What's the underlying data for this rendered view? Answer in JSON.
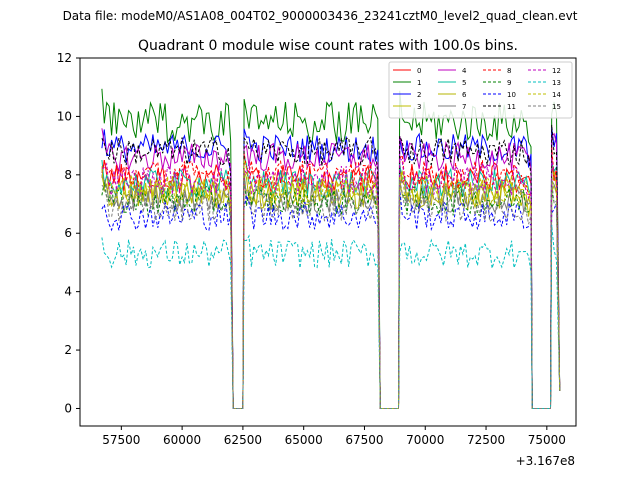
{
  "header": {
    "file_label": "Data file: modeM0/AS1A08_004T02_9000003436_23241cztM0_level2_quad_clean.evt"
  },
  "chart_data": {
    "type": "line",
    "title": "Quadrant 0 module wise count rates with 100.0s bins.",
    "xlabel": "",
    "ylabel": "",
    "x_offset_label": "+3.167e8",
    "xlim": [
      55800,
      76200
    ],
    "ylim": [
      -0.6,
      12
    ],
    "xticks": [
      57500,
      60000,
      62500,
      65000,
      67500,
      70000,
      72500,
      75000
    ],
    "xtick_labels": [
      "57500",
      "60000",
      "62500",
      "65000",
      "67500",
      "70000",
      "72500",
      "75000"
    ],
    "yticks": [
      0,
      2,
      4,
      6,
      8,
      10,
      12
    ],
    "ytick_labels": [
      "0",
      "2",
      "4",
      "6",
      "8",
      "10",
      "12"
    ],
    "grid": false,
    "legend_position": "top-right",
    "segments": [
      {
        "start": 56700,
        "end": 62050
      },
      {
        "start": 62550,
        "end": 68100
      },
      {
        "start": 68950,
        "end": 74350
      },
      {
        "start": 75200,
        "end": 75450
      }
    ],
    "gaps": [
      {
        "drop": 62100,
        "rise": 62500
      },
      {
        "drop": 68150,
        "rise": 68900
      },
      {
        "drop": 74400,
        "rise": 75150
      }
    ],
    "bin_size": 100,
    "series": [
      {
        "name": "0",
        "color": "#ff0000",
        "dash": "solid",
        "mean": 7.9
      },
      {
        "name": "1",
        "color": "#008000",
        "dash": "solid",
        "mean": 9.8
      },
      {
        "name": "2",
        "color": "#0000ff",
        "dash": "solid",
        "mean": 8.9
      },
      {
        "name": "3",
        "color": "#bfbf00",
        "dash": "solid",
        "mean": 7.4
      },
      {
        "name": "4",
        "color": "#bf00bf",
        "dash": "solid",
        "mean": 8.6
      },
      {
        "name": "5",
        "color": "#00bf9f",
        "dash": "solid",
        "mean": 7.7
      },
      {
        "name": "6",
        "color": "#b5b500",
        "dash": "solid",
        "mean": 7.3
      },
      {
        "name": "7",
        "color": "#7f7f7f",
        "dash": "solid",
        "mean": 7.2
      },
      {
        "name": "8",
        "color": "#ff0000",
        "dash": "dashed",
        "mean": 8.0
      },
      {
        "name": "9",
        "color": "#008000",
        "dash": "dashed",
        "mean": 7.1
      },
      {
        "name": "10",
        "color": "#0000ff",
        "dash": "dashed",
        "mean": 6.6
      },
      {
        "name": "11",
        "color": "#000000",
        "dash": "dashed",
        "mean": 8.8
      },
      {
        "name": "12",
        "color": "#bf00bf",
        "dash": "dashed",
        "mean": 7.8
      },
      {
        "name": "13",
        "color": "#00bfbf",
        "dash": "dashed",
        "mean": 5.3
      },
      {
        "name": "14",
        "color": "#bfbf00",
        "dash": "dashed",
        "mean": 7.5
      },
      {
        "name": "15",
        "color": "#7f7f7f",
        "dash": "dashed",
        "mean": 6.9
      }
    ]
  }
}
